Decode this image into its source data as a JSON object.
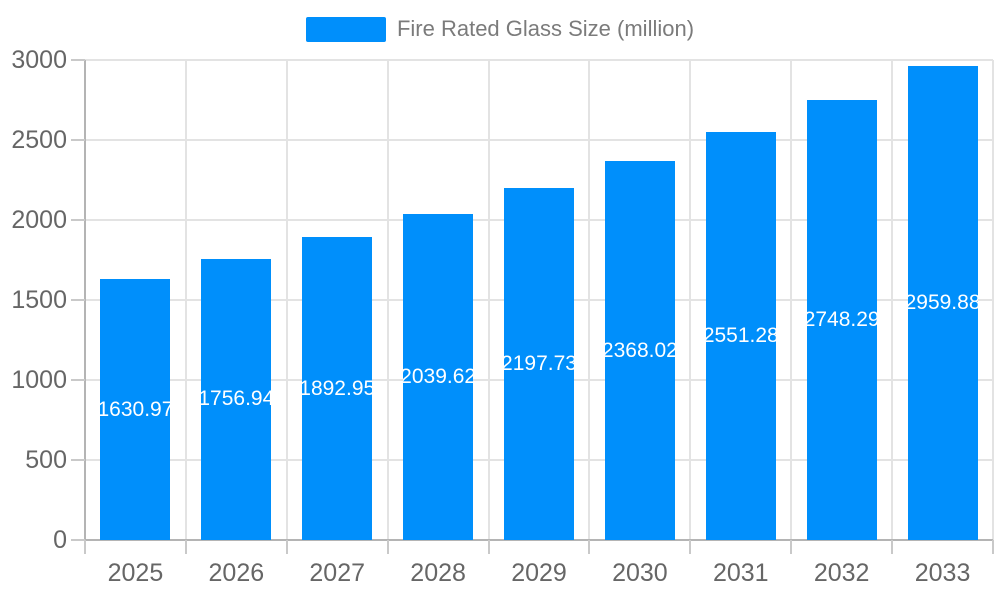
{
  "legend": {
    "label": "Fire Rated Glass Size (million)"
  },
  "chart_data": {
    "type": "bar",
    "title": "Fire Rated Glass Size (million)",
    "categories": [
      "2025",
      "2026",
      "2027",
      "2028",
      "2029",
      "2030",
      "2031",
      "2032",
      "2033"
    ],
    "series": [
      {
        "name": "Fire Rated Glass Size (million)",
        "values": [
          1630.97,
          1756.94,
          1892.95,
          2039.62,
          2197.73,
          2368.02,
          2551.28,
          2748.29,
          2959.88
        ],
        "data_labels": [
          "1630.97",
          "1756.94",
          "1892.95",
          "2039.62",
          "2197.73",
          "2368.02",
          "2551.28",
          "2748.29",
          "2959.88"
        ]
      }
    ],
    "xlabel": "",
    "ylabel": "",
    "ylim": [
      0,
      3000
    ],
    "yticks": [
      0,
      500,
      1000,
      1500,
      2000,
      2500,
      3000
    ],
    "grid": true,
    "legend_position": "top",
    "colors": {
      "bar": "#008FFB",
      "gridline": "#e3e3e3",
      "axis_border": "#b4b4b4",
      "tick_mark": "#c9c9c9",
      "tick_text": "#666666",
      "legend_text": "#7b7b7b",
      "data_label_text": "#ffffff",
      "background": "#ffffff"
    }
  }
}
